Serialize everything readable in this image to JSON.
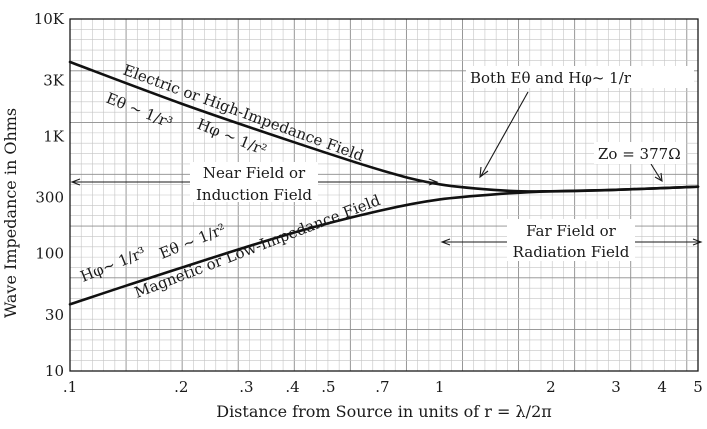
{
  "chart_data": {
    "type": "line",
    "title": "",
    "xlabel": "Distance from Source in units of r = λ/2π",
    "ylabel": "Wave Impedance in Ohms",
    "x_scale": "log",
    "y_scale": "log",
    "xlim": [
      0.1,
      5
    ],
    "ylim": [
      10,
      10000
    ],
    "grid": true,
    "x_ticks": [
      {
        "value": 0.1,
        "label": ".1"
      },
      {
        "value": 0.2,
        "label": ".2"
      },
      {
        "value": 0.3,
        "label": ".3"
      },
      {
        "value": 0.4,
        "label": ".4"
      },
      {
        "value": 0.5,
        "label": ".5"
      },
      {
        "value": 0.7,
        "label": ".7"
      },
      {
        "value": 1,
        "label": "1"
      },
      {
        "value": 2,
        "label": "2"
      },
      {
        "value": 3,
        "label": "3"
      },
      {
        "value": 4,
        "label": "4"
      },
      {
        "value": 5,
        "label": "5"
      }
    ],
    "y_ticks": [
      {
        "value": 10,
        "label": "10"
      },
      {
        "value": 30,
        "label": "30"
      },
      {
        "value": 100,
        "label": "100"
      },
      {
        "value": 300,
        "label": "300"
      },
      {
        "value": 1000,
        "label": "1K"
      },
      {
        "value": 3000,
        "label": "3K"
      },
      {
        "value": 10000,
        "label": "10K"
      }
    ],
    "series": [
      {
        "key": "electric",
        "points": [
          [
            0.1,
            4300
          ],
          [
            0.2,
            1900
          ],
          [
            0.4,
            900
          ],
          [
            0.7,
            510
          ],
          [
            1.0,
            390
          ],
          [
            1.5,
            345
          ],
          [
            2.0,
            340
          ],
          [
            3.0,
            350
          ],
          [
            5.0,
            372
          ]
        ]
      },
      {
        "key": "magnetic",
        "points": [
          [
            0.1,
            37
          ],
          [
            0.2,
            76
          ],
          [
            0.4,
            150
          ],
          [
            0.7,
            235
          ],
          [
            1.0,
            290
          ],
          [
            1.5,
            325
          ],
          [
            2.0,
            340
          ],
          [
            3.0,
            350
          ],
          [
            5.0,
            372
          ]
        ]
      }
    ],
    "annotations": {
      "electric_curve": "Electric or High-Impedance Field",
      "e_theta_r3": "Eθ ~ 1/r³",
      "h_phi_r2": "Hφ ~ 1/r²",
      "near_field_line1": "Near Field or",
      "near_field_line2": "Induction Field",
      "magnetic_curve": "Magnetic or Low-Impedance Field",
      "h_phi_r3": "Hφ~ 1/r³",
      "e_theta_r2": "Eθ ~ 1/r²",
      "both_fields": "Both Eθ and Hφ~ 1/r",
      "z0": "Zo = 377Ω",
      "far_field_line1": "Far Field or",
      "far_field_line2": "Radiation Field"
    }
  }
}
